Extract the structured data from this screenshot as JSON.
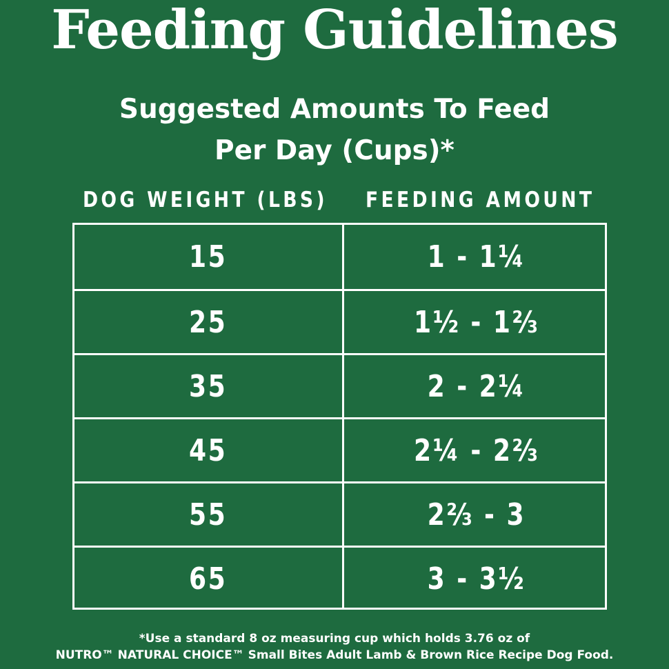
{
  "title": "Feeding Guidelines",
  "subtitle": {
    "line1": "Suggested Amounts To Feed",
    "line2": "Per Day (Cups)*"
  },
  "table": {
    "headers": {
      "weight": "DOG WEIGHT (LBS)",
      "amount": "FEEDING AMOUNT"
    },
    "rows": [
      {
        "weight": "15",
        "amount": "1 - 1¼"
      },
      {
        "weight": "25",
        "amount": "1½ - 1⅔"
      },
      {
        "weight": "35",
        "amount": "2 - 2¼"
      },
      {
        "weight": "45",
        "amount": "2¼ - 2⅔"
      },
      {
        "weight": "55",
        "amount": "2⅔ - 3"
      },
      {
        "weight": "65",
        "amount": "3 - 3½"
      }
    ]
  },
  "footnote": {
    "line1": "*Use a standard 8 oz measuring cup which holds 3.76 oz of",
    "line2": "NUTRO™ NATURAL CHOICE™ Small Bites Adult Lamb & Brown Rice Recipe Dog Food."
  },
  "colors": {
    "background": "#1e6b3f",
    "text": "#ffffff"
  }
}
